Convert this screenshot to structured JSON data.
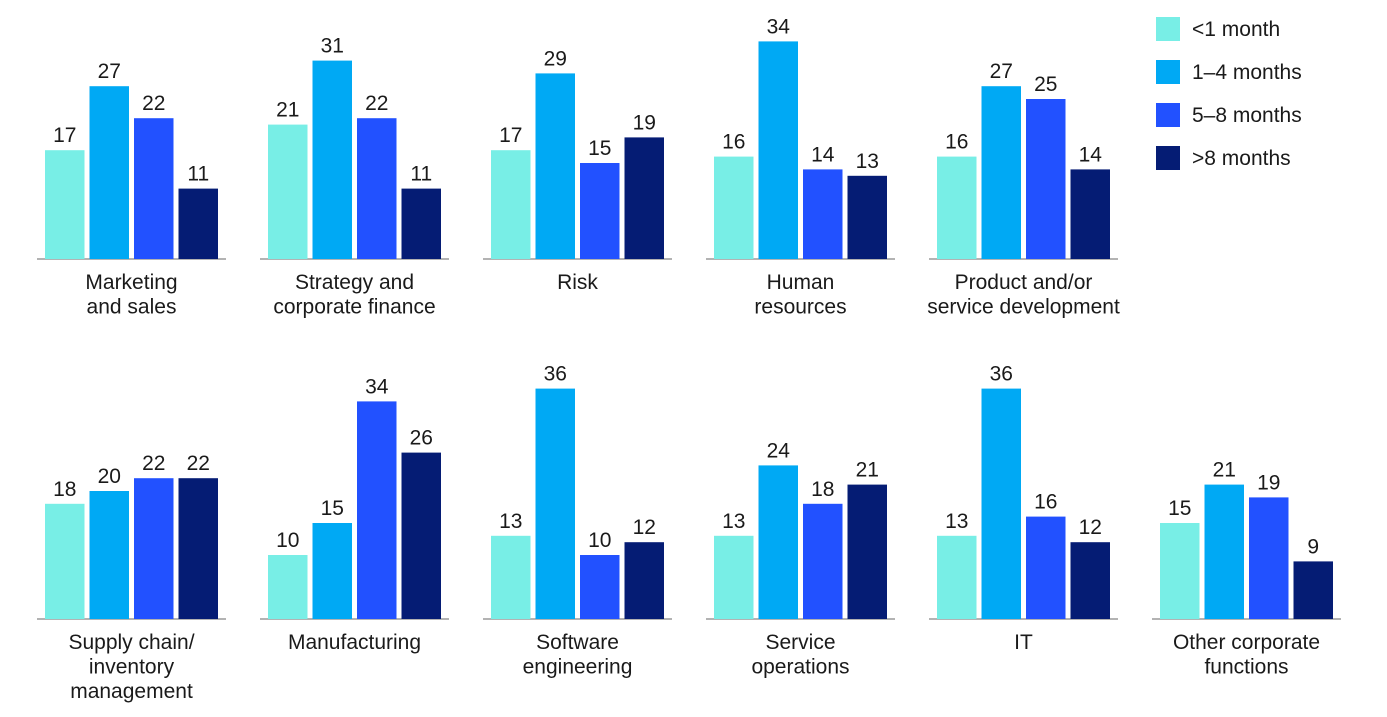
{
  "chart_data": {
    "type": "bar",
    "series_names": [
      "<1 month",
      "1–4 months",
      "5–8 months",
      ">8 months"
    ],
    "colors": [
      "#78eee6",
      "#00a9f4",
      "#2251ff",
      "#051c74"
    ],
    "legend_position": "top-right",
    "grid": false,
    "ylim": [
      0,
      36
    ],
    "panels": [
      {
        "label": [
          "Marketing",
          "and sales"
        ],
        "values": [
          17,
          27,
          22,
          11
        ]
      },
      {
        "label": [
          "Strategy and",
          "corporate finance"
        ],
        "values": [
          21,
          31,
          22,
          11
        ]
      },
      {
        "label": [
          "Risk"
        ],
        "values": [
          17,
          29,
          15,
          19
        ]
      },
      {
        "label": [
          "Human",
          "resources"
        ],
        "values": [
          16,
          34,
          14,
          13
        ]
      },
      {
        "label": [
          "Product and/or",
          "service development"
        ],
        "values": [
          16,
          27,
          25,
          14
        ]
      },
      {
        "label": [
          "Supply chain/",
          "inventory",
          "management"
        ],
        "values": [
          18,
          20,
          22,
          22
        ]
      },
      {
        "label": [
          "Manufacturing"
        ],
        "values": [
          10,
          15,
          34,
          26
        ]
      },
      {
        "label": [
          "Software",
          "engineering"
        ],
        "values": [
          13,
          36,
          10,
          12
        ]
      },
      {
        "label": [
          "Service",
          "operations"
        ],
        "values": [
          13,
          24,
          18,
          21
        ]
      },
      {
        "label": [
          "IT"
        ],
        "values": [
          13,
          36,
          16,
          12
        ]
      },
      {
        "label": [
          "Other corporate",
          "functions"
        ],
        "values": [
          15,
          21,
          19,
          9
        ]
      }
    ]
  }
}
